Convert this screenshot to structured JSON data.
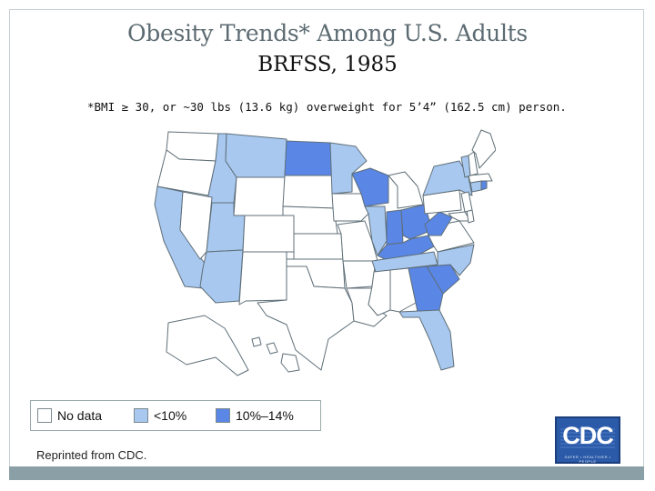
{
  "slide": {
    "title": "Obesity Trends* Among U.S. Adults",
    "subtitle": "BRFSS, 1985",
    "footnote": "*BMI ≥ 30, or ~30 lbs (13.6 kg) overweight for 5’4” (162.5 cm) person."
  },
  "legend": {
    "items": [
      {
        "label": "No data",
        "color": "#ffffff"
      },
      {
        "label": "<10%",
        "color": "#a8c8f0"
      },
      {
        "label": "10%–14%",
        "color": "#5a86e6"
      }
    ]
  },
  "footer": {
    "reprint": "Reprinted from CDC.",
    "logo_text": "CDC",
    "logo_tagline": "SAFER • HEALTHIER • PEOPLE"
  },
  "colors": {
    "no_data": "#ffffff",
    "low": "#a8c8f0",
    "high": "#5a86e6",
    "border": "#5f6f78"
  },
  "states": [
    {
      "code": "WA",
      "category": "none"
    },
    {
      "code": "OR",
      "category": "none"
    },
    {
      "code": "CA",
      "category": "low"
    },
    {
      "code": "ID",
      "category": "low"
    },
    {
      "code": "NV",
      "category": "none"
    },
    {
      "code": "MT",
      "category": "low"
    },
    {
      "code": "WY",
      "category": "none"
    },
    {
      "code": "UT",
      "category": "low"
    },
    {
      "code": "AZ",
      "category": "low"
    },
    {
      "code": "CO",
      "category": "none"
    },
    {
      "code": "NM",
      "category": "none"
    },
    {
      "code": "ND",
      "category": "high"
    },
    {
      "code": "SD",
      "category": "none"
    },
    {
      "code": "NE",
      "category": "none"
    },
    {
      "code": "KS",
      "category": "none"
    },
    {
      "code": "OK",
      "category": "none"
    },
    {
      "code": "TX",
      "category": "none"
    },
    {
      "code": "MN",
      "category": "low"
    },
    {
      "code": "IA",
      "category": "none"
    },
    {
      "code": "MO",
      "category": "none"
    },
    {
      "code": "AR",
      "category": "none"
    },
    {
      "code": "LA",
      "category": "none"
    },
    {
      "code": "WI",
      "category": "high"
    },
    {
      "code": "IL",
      "category": "low"
    },
    {
      "code": "MI",
      "category": "none"
    },
    {
      "code": "IN",
      "category": "high"
    },
    {
      "code": "OH",
      "category": "high"
    },
    {
      "code": "KY",
      "category": "high"
    },
    {
      "code": "TN",
      "category": "low"
    },
    {
      "code": "MS",
      "category": "none"
    },
    {
      "code": "AL",
      "category": "none"
    },
    {
      "code": "GA",
      "category": "high"
    },
    {
      "code": "FL",
      "category": "low"
    },
    {
      "code": "SC",
      "category": "high"
    },
    {
      "code": "NC",
      "category": "low"
    },
    {
      "code": "VA",
      "category": "none"
    },
    {
      "code": "WV",
      "category": "high"
    },
    {
      "code": "PA",
      "category": "none"
    },
    {
      "code": "NY",
      "category": "low"
    },
    {
      "code": "MD",
      "category": "none"
    },
    {
      "code": "DE",
      "category": "none"
    },
    {
      "code": "NJ",
      "category": "none"
    },
    {
      "code": "CT",
      "category": "low"
    },
    {
      "code": "RI",
      "category": "high"
    },
    {
      "code": "MA",
      "category": "none"
    },
    {
      "code": "VT",
      "category": "low"
    },
    {
      "code": "NH",
      "category": "none"
    },
    {
      "code": "ME",
      "category": "none"
    },
    {
      "code": "AK",
      "category": "none"
    },
    {
      "code": "HI",
      "category": "none"
    }
  ]
}
